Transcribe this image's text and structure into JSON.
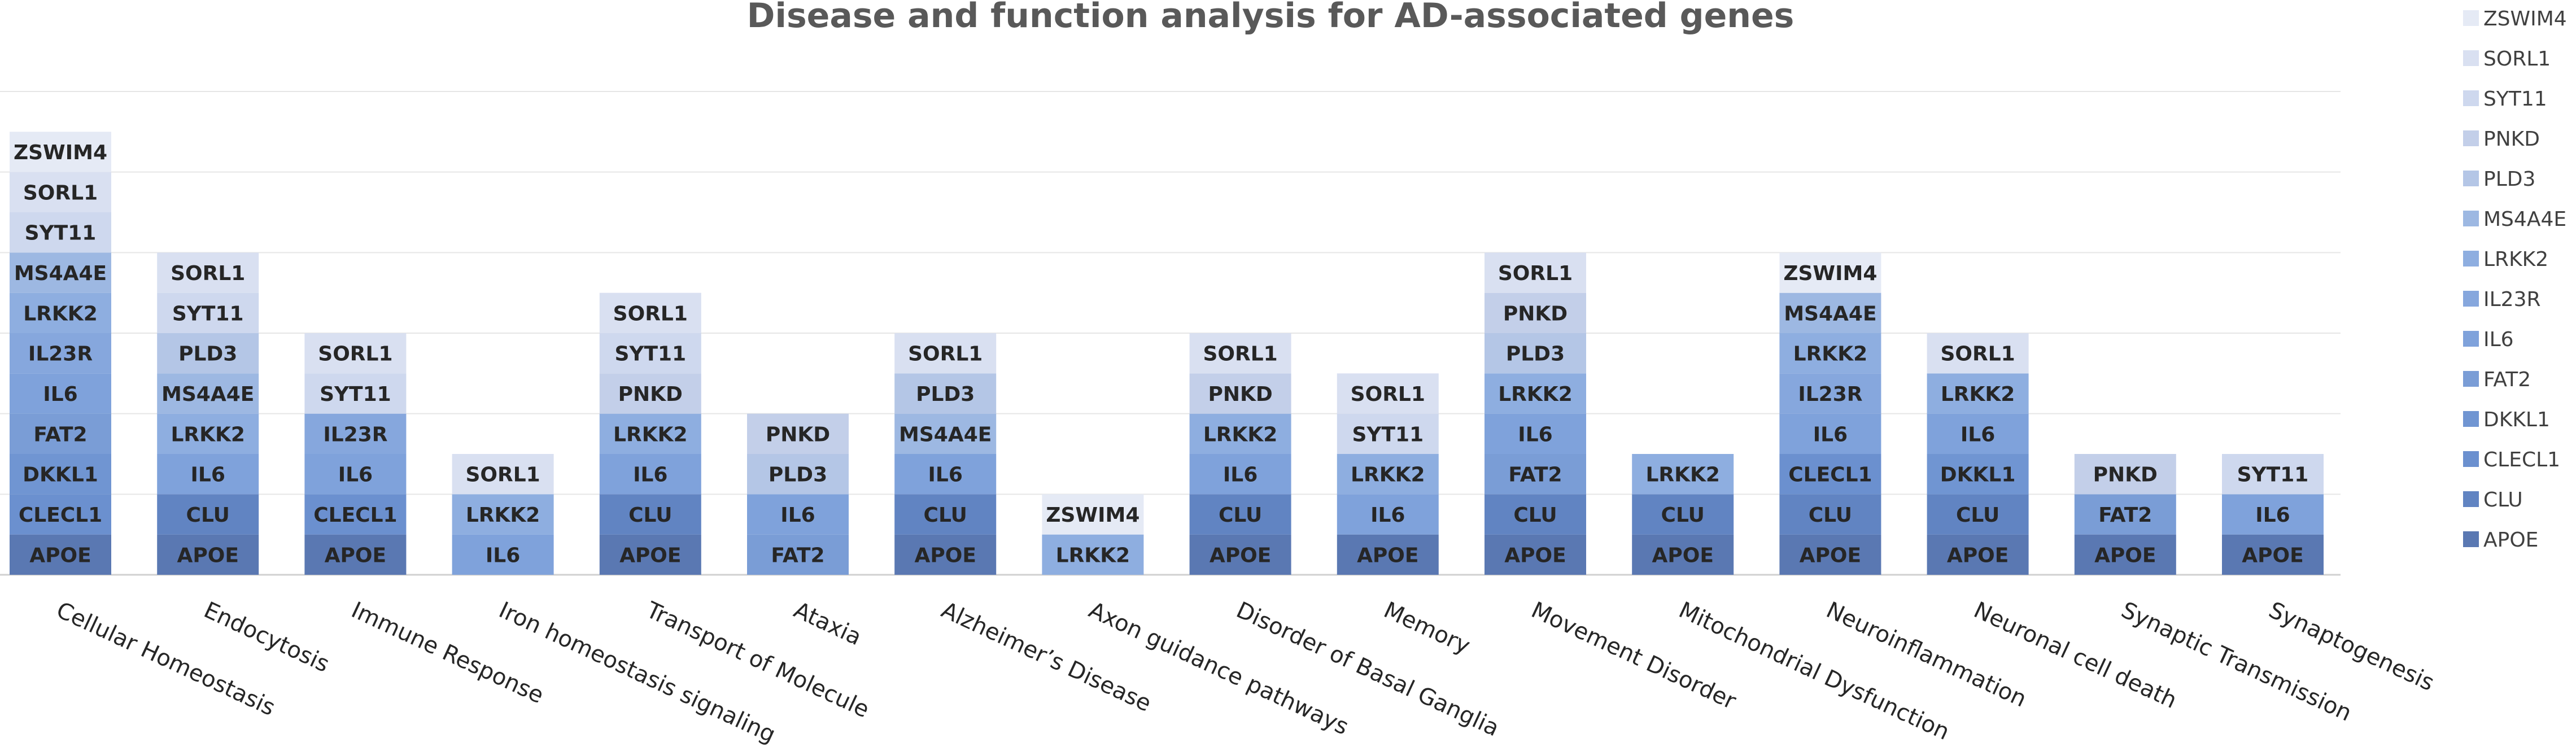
{
  "chart_data": {
    "type": "bar",
    "stacked": true,
    "title": "Disease and function analysis for AD-associated genes",
    "xlabel": "",
    "ylabel": "",
    "ylim": [
      0,
      12
    ],
    "grid": true,
    "legend_position": "right",
    "legend": [
      "ZSWIM4",
      "SORL1",
      "SYT11",
      "PNKD",
      "PLD3",
      "MS4A4E",
      "LRKK2",
      "IL23R",
      "IL6",
      "FAT2",
      "DKKL1",
      "CLECL1",
      "CLU",
      "APOE"
    ],
    "gene_colors": {
      "APOE": "#5a78b2",
      "CLU": "#6184c2",
      "CLECL1": "#6b90cf",
      "DKKL1": "#7095d2",
      "FAT2": "#7a9dd6",
      "IL6": "#7fa2db",
      "IL23R": "#86a7dd",
      "LRKK2": "#8eaee0",
      "MS4A4E": "#9db8e2",
      "PLD3": "#b4c6e6",
      "PNKD": "#c3cfe9",
      "SYT11": "#ced8ee",
      "SORL1": "#d9e0f1",
      "ZSWIM4": "#e5eaf5"
    },
    "categories": [
      {
        "name": "Cellular Homeostasis",
        "genes": [
          "APOE",
          "CLECL1",
          "DKKL1",
          "FAT2",
          "IL6",
          "IL23R",
          "LRKK2",
          "MS4A4E",
          "SYT11",
          "SORL1",
          "ZSWIM4"
        ]
      },
      {
        "name": "Endocytosis",
        "genes": [
          "APOE",
          "CLU",
          "IL6",
          "LRKK2",
          "MS4A4E",
          "PLD3",
          "SYT11",
          "SORL1"
        ]
      },
      {
        "name": "Immune Response",
        "genes": [
          "APOE",
          "CLECL1",
          "IL6",
          "IL23R",
          "SYT11",
          "SORL1"
        ]
      },
      {
        "name": "Iron homeostasis signaling",
        "genes": [
          "IL6",
          "LRKK2",
          "SORL1"
        ]
      },
      {
        "name": "Transport of Molecule",
        "genes": [
          "APOE",
          "CLU",
          "IL6",
          "LRKK2",
          "PNKD",
          "SYT11",
          "SORL1"
        ]
      },
      {
        "name": "Ataxia",
        "genes": [
          "FAT2",
          "IL6",
          "PLD3",
          "PNKD"
        ]
      },
      {
        "name": "Alzheimer’s Disease",
        "genes": [
          "APOE",
          "CLU",
          "IL6",
          "MS4A4E",
          "PLD3",
          "SORL1"
        ]
      },
      {
        "name": "Axon guidance pathways",
        "genes": [
          "LRKK2",
          "ZSWIM4"
        ]
      },
      {
        "name": "Disorder of Basal Ganglia",
        "genes": [
          "APOE",
          "CLU",
          "IL6",
          "LRKK2",
          "PNKD",
          "SORL1"
        ]
      },
      {
        "name": "Memory",
        "genes": [
          "APOE",
          "IL6",
          "LRKK2",
          "SYT11",
          "SORL1"
        ]
      },
      {
        "name": "Movement Disorder",
        "genes": [
          "APOE",
          "CLU",
          "FAT2",
          "IL6",
          "LRKK2",
          "PLD3",
          "PNKD",
          "SORL1"
        ]
      },
      {
        "name": "Mitochondrial Dysfunction",
        "genes": [
          "APOE",
          "CLU",
          "LRKK2"
        ]
      },
      {
        "name": "Neuroinflammation",
        "genes": [
          "APOE",
          "CLU",
          "CLECL1",
          "IL6",
          "IL23R",
          "LRKK2",
          "MS4A4E",
          "ZSWIM4"
        ]
      },
      {
        "name": "Neuronal cell death",
        "genes": [
          "APOE",
          "CLU",
          "DKKL1",
          "IL6",
          "LRKK2",
          "SORL1"
        ]
      },
      {
        "name": "Synaptic Transmission",
        "genes": [
          "APOE",
          "FAT2",
          "PNKD"
        ]
      },
      {
        "name": "Synaptogenesis",
        "genes": [
          "APOE",
          "IL6",
          "SYT11"
        ]
      }
    ]
  }
}
